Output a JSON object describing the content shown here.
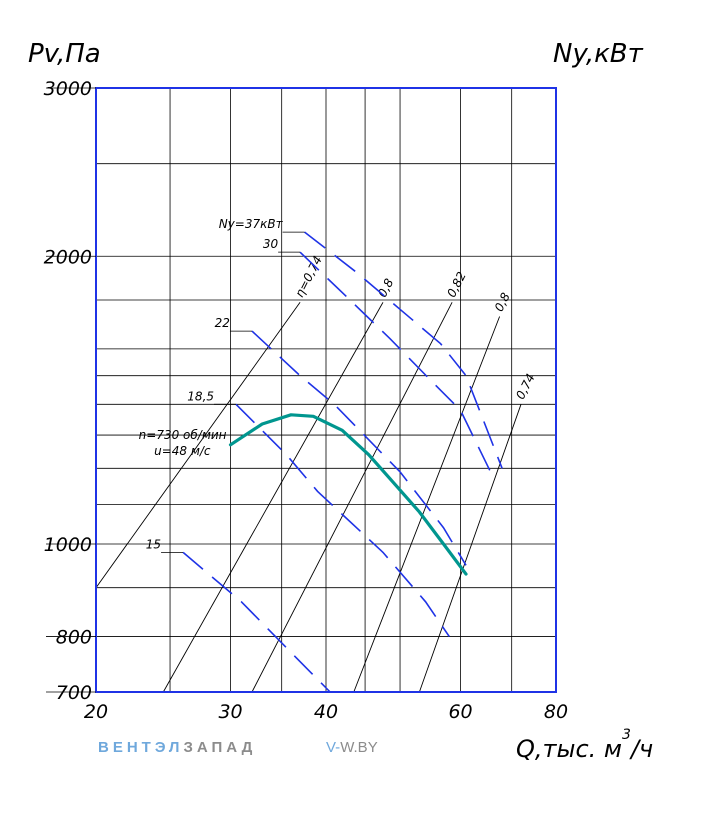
{
  "chart_data": {
    "type": "line",
    "title": "",
    "ylabel_left": "Pv,Па",
    "ylabel_right": "Ny,кВт",
    "xlabel_main": "Q,тыс. м",
    "xlabel_sup": "3",
    "xlabel_tail": "/ч",
    "x_scale": "log",
    "y_scale": "log",
    "xlim": [
      20,
      80
    ],
    "ylim": [
      700,
      3000
    ],
    "x_ticks": [
      "20",
      "30",
      "40",
      "60",
      "80"
    ],
    "x_tick_values": [
      20,
      30,
      40,
      60,
      80
    ],
    "y_ticks": [
      "3000",
      "2000",
      "1000",
      "800",
      "700"
    ],
    "y_tick_values": [
      3000,
      2000,
      1000,
      800,
      700
    ],
    "grid": true,
    "curve_label_1": "n=730 об/мин",
    "curve_label_2": "u=48 м/с",
    "pressure_curve": {
      "color": "#00968f",
      "points": [
        [
          30,
          1270
        ],
        [
          33,
          1335
        ],
        [
          36,
          1365
        ],
        [
          38.5,
          1360
        ],
        [
          42,
          1315
        ],
        [
          45.5,
          1240
        ],
        [
          49,
          1160
        ],
        [
          53,
          1080
        ],
        [
          57,
          1000
        ],
        [
          61,
          930
        ]
      ]
    },
    "efficiency_lines": [
      {
        "label": "η=0,74",
        "points": [
          [
            20,
            900
          ],
          [
            37,
            1790
          ]
        ]
      },
      {
        "label": "0,8",
        "points": [
          [
            24.5,
            700
          ],
          [
            47.5,
            1790
          ]
        ]
      },
      {
        "label": "0,82",
        "points": [
          [
            32,
            700
          ],
          [
            58.5,
            1790
          ]
        ]
      },
      {
        "label": "0,8",
        "points": [
          [
            43.5,
            700
          ],
          [
            67.5,
            1730
          ]
        ]
      },
      {
        "label": "0,74",
        "points": [
          [
            53,
            700
          ],
          [
            72,
            1400
          ]
        ]
      }
    ],
    "power_curves": {
      "color": "#1f33e6",
      "series": [
        {
          "name": "15",
          "points": [
            [
              26,
              980
            ],
            [
              31,
              870
            ],
            [
              36,
              770
            ],
            [
              40.5,
              700
            ]
          ]
        },
        {
          "name": "18,5",
          "points": [
            [
              30.5,
              1400
            ],
            [
              35.5,
              1240
            ],
            [
              39,
              1135
            ],
            [
              47.5,
              980
            ],
            [
              54,
              870
            ],
            [
              58,
              800
            ]
          ]
        },
        {
          "name": "22",
          "points": [
            [
              32,
              1670
            ],
            [
              37,
              1500
            ],
            [
              41,
              1400
            ],
            [
              50,
              1190
            ],
            [
              57,
              1040
            ],
            [
              61,
              950
            ]
          ]
        },
        {
          "name": "30",
          "points": [
            [
              37,
              2020
            ],
            [
              43,
              1800
            ],
            [
              48.5,
              1640
            ],
            [
              55,
              1480
            ],
            [
              60,
              1380
            ],
            [
              66,
              1180
            ]
          ]
        },
        {
          "name": "Ny=37кВт",
          "points": [
            [
              37.5,
              2120
            ],
            [
              44,
              1920
            ],
            [
              50,
              1760
            ],
            [
              56.5,
              1620
            ],
            [
              61,
              1500
            ],
            [
              68,
              1200
            ]
          ]
        }
      ]
    }
  },
  "branding": {
    "brand_part1": "ВЕНТЭЛ",
    "brand_part2": "ЗАПАД",
    "site_part1": "V-",
    "site_part2": "W.BY"
  }
}
